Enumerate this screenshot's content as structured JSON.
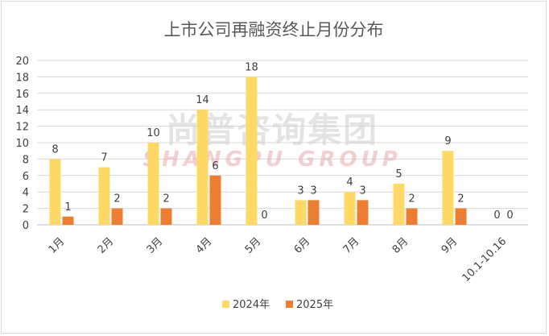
{
  "chart_data": {
    "type": "bar",
    "title": "上市公司再融资终止月份分布",
    "categories": [
      "1月",
      "2月",
      "3月",
      "4月",
      "5月",
      "6月",
      "7月",
      "8月",
      "9月",
      "10.1-10.16"
    ],
    "series": [
      {
        "name": "2024年",
        "color": "#FFD966",
        "values": [
          8,
          7,
          10,
          14,
          18,
          3,
          4,
          5,
          9,
          0
        ]
      },
      {
        "name": "2025年",
        "color": "#ED7D31",
        "values": [
          1,
          2,
          2,
          6,
          0,
          3,
          3,
          2,
          2,
          0
        ]
      }
    ],
    "ylim": [
      0,
      20
    ],
    "yticks": [
      0,
      2,
      4,
      6,
      8,
      10,
      12,
      14,
      16,
      18,
      20
    ],
    "grid": true,
    "legend": "bottom",
    "data_labels": true
  },
  "watermark": {
    "cn": "尚普咨询集团",
    "en": "SHANGPU GROUP"
  }
}
